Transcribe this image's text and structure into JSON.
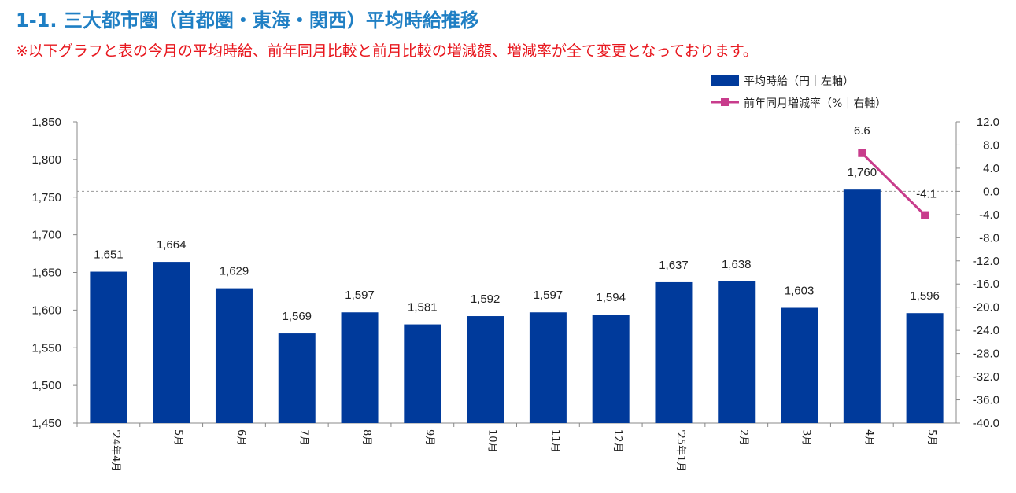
{
  "header": {
    "title": "1-1. 三大都市圏（首都圏・東海・関西）平均時給推移",
    "note": "※以下グラフと表の今月の平均時給、前年同月比較と前月比較の増減額、増減率が全て変更となっております。"
  },
  "chart_data": {
    "type": "bar",
    "categories": [
      "'24年4月",
      "5月",
      "6月",
      "7月",
      "8月",
      "9月",
      "10月",
      "11月",
      "12月",
      "'25年1月",
      "2月",
      "3月",
      "4月",
      "5月"
    ],
    "series": [
      {
        "name": "平均時給（円｜左軸）",
        "type": "bar",
        "axis": "left",
        "color": "#003a9b",
        "values": [
          1651,
          1664,
          1629,
          1569,
          1597,
          1581,
          1592,
          1597,
          1594,
          1637,
          1638,
          1603,
          1760,
          1596
        ],
        "labels": [
          "1,651",
          "1,664",
          "1,629",
          "1,569",
          "1,597",
          "1,581",
          "1,592",
          "1,597",
          "1,594",
          "1,637",
          "1,638",
          "1,603",
          "1,760",
          "1,596"
        ]
      },
      {
        "name": "前年同月増減率（%｜右軸）",
        "type": "line",
        "axis": "right",
        "color": "#c83c8c",
        "values": [
          null,
          null,
          null,
          null,
          null,
          null,
          null,
          null,
          null,
          null,
          null,
          null,
          6.6,
          -4.1
        ],
        "labels": [
          "",
          "",
          "",
          "",
          "",
          "",
          "",
          "",
          "",
          "",
          "",
          "",
          "6.6",
          "-4.1"
        ]
      }
    ],
    "left_axis": {
      "ylim": [
        1450,
        1850
      ],
      "ticks": [
        1450,
        1500,
        1550,
        1600,
        1650,
        1700,
        1750,
        1800,
        1850
      ],
      "tick_labels": [
        "1,450",
        "1,500",
        "1,550",
        "1,600",
        "1,650",
        "1,700",
        "1,750",
        "1,800",
        "1,850"
      ]
    },
    "right_axis": {
      "ylim": [
        -40,
        12
      ],
      "ticks": [
        12,
        8,
        4,
        0,
        -4,
        -8,
        -12,
        -16,
        -20,
        -24,
        -28,
        -32,
        -36,
        -40
      ],
      "tick_labels": [
        "12.0",
        "8.0",
        "4.0",
        "0.0",
        "-4.0",
        "-8.0",
        "-12.0",
        "-16.0",
        "-20.0",
        "-24.0",
        "-28.0",
        "-32.0",
        "-36.0",
        "-40.0"
      ]
    },
    "zero_reference_line": "dashed",
    "grid": false,
    "legend_position": "top-right"
  }
}
